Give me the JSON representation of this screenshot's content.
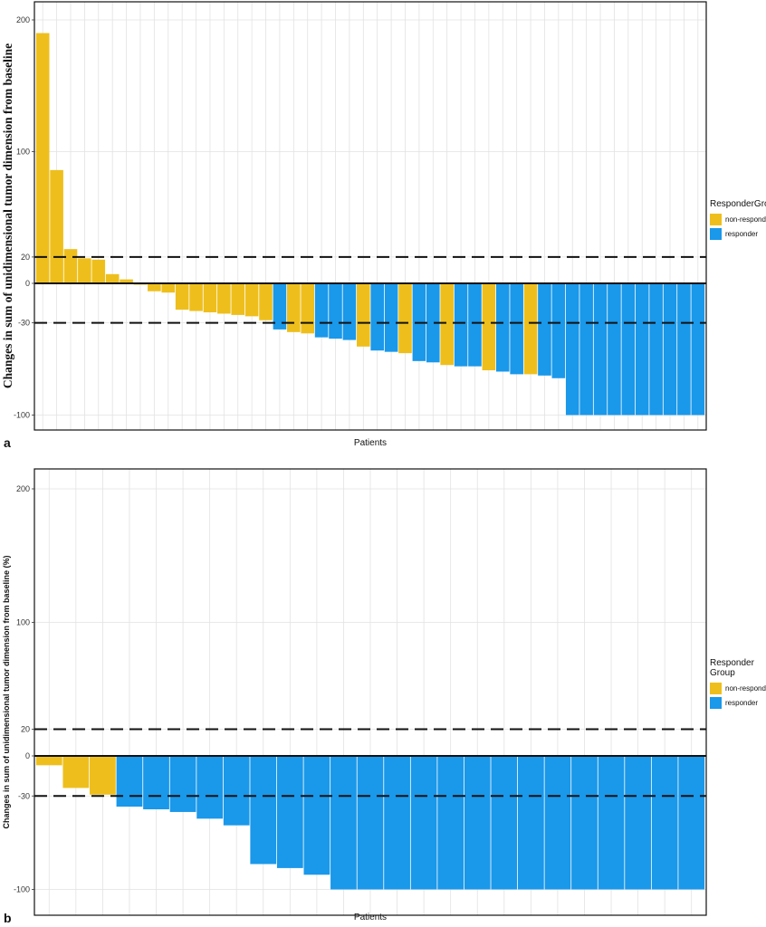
{
  "colors": {
    "non_responder": "#EEBF1C",
    "responder": "#1A98EA",
    "grid": "#e2e2e2",
    "reference_line": "#111111"
  },
  "chart_data": [
    {
      "panel": "a",
      "type": "bar",
      "title": "",
      "xlabel": "Patients",
      "ylabel": "Changes in sum of unidimensional tumor dimension from baseline",
      "yticks": [
        200,
        100,
        20,
        0,
        -30,
        -100
      ],
      "ylim": [
        -100,
        200
      ],
      "reference_lines": [
        20,
        -30
      ],
      "grid": true,
      "legend": {
        "title": "ResponderGroup",
        "position": "right",
        "entries": [
          "non-responder",
          "responder"
        ]
      },
      "values": [
        190,
        86,
        26,
        19,
        18,
        7,
        3,
        -1,
        -6,
        -7,
        -20,
        -21,
        -22,
        -23,
        -24,
        -25,
        -28,
        -35,
        -37,
        -38,
        -41,
        -42,
        -43,
        -48,
        -51,
        -52,
        -53,
        -59,
        -60,
        -62,
        -63,
        -63,
        -66,
        -67,
        -69,
        -69,
        -70,
        -72,
        -100,
        -100,
        -100,
        -100,
        -100,
        -100,
        -100,
        -100,
        -100,
        -100
      ],
      "groups": [
        "non-responder",
        "non-responder",
        "non-responder",
        "non-responder",
        "non-responder",
        "non-responder",
        "non-responder",
        "non-responder",
        "non-responder",
        "non-responder",
        "non-responder",
        "non-responder",
        "non-responder",
        "non-responder",
        "non-responder",
        "non-responder",
        "non-responder",
        "responder",
        "non-responder",
        "non-responder",
        "responder",
        "responder",
        "responder",
        "non-responder",
        "responder",
        "responder",
        "non-responder",
        "responder",
        "responder",
        "non-responder",
        "responder",
        "responder",
        "non-responder",
        "responder",
        "responder",
        "non-responder",
        "responder",
        "responder",
        "responder",
        "responder",
        "responder",
        "responder",
        "responder",
        "responder",
        "responder",
        "responder",
        "responder",
        "responder"
      ]
    },
    {
      "panel": "b",
      "type": "bar",
      "title": "",
      "xlabel": "Patients",
      "ylabel": "Changes in sum of unidimensional tumor dimension from baseline  (%)",
      "yticks": [
        200,
        100,
        20,
        0,
        -30,
        -100
      ],
      "ylim": [
        -100,
        200
      ],
      "reference_lines": [
        20,
        -30
      ],
      "grid": true,
      "legend": {
        "title": "Responder Group",
        "position": "right",
        "entries": [
          "non-responder",
          "responder"
        ]
      },
      "values": [
        -7,
        -24,
        -29,
        -38,
        -40,
        -42,
        -47,
        -52,
        -81,
        -84,
        -89,
        -100,
        -100,
        -100,
        -100,
        -100,
        -100,
        -100,
        -100,
        -100,
        -100,
        -100,
        -100,
        -100,
        -100
      ],
      "groups": [
        "non-responder",
        "non-responder",
        "non-responder",
        "responder",
        "responder",
        "responder",
        "responder",
        "responder",
        "responder",
        "responder",
        "responder",
        "responder",
        "responder",
        "responder",
        "responder",
        "responder",
        "responder",
        "responder",
        "responder",
        "responder",
        "responder",
        "responder",
        "responder",
        "responder",
        "responder"
      ]
    }
  ]
}
